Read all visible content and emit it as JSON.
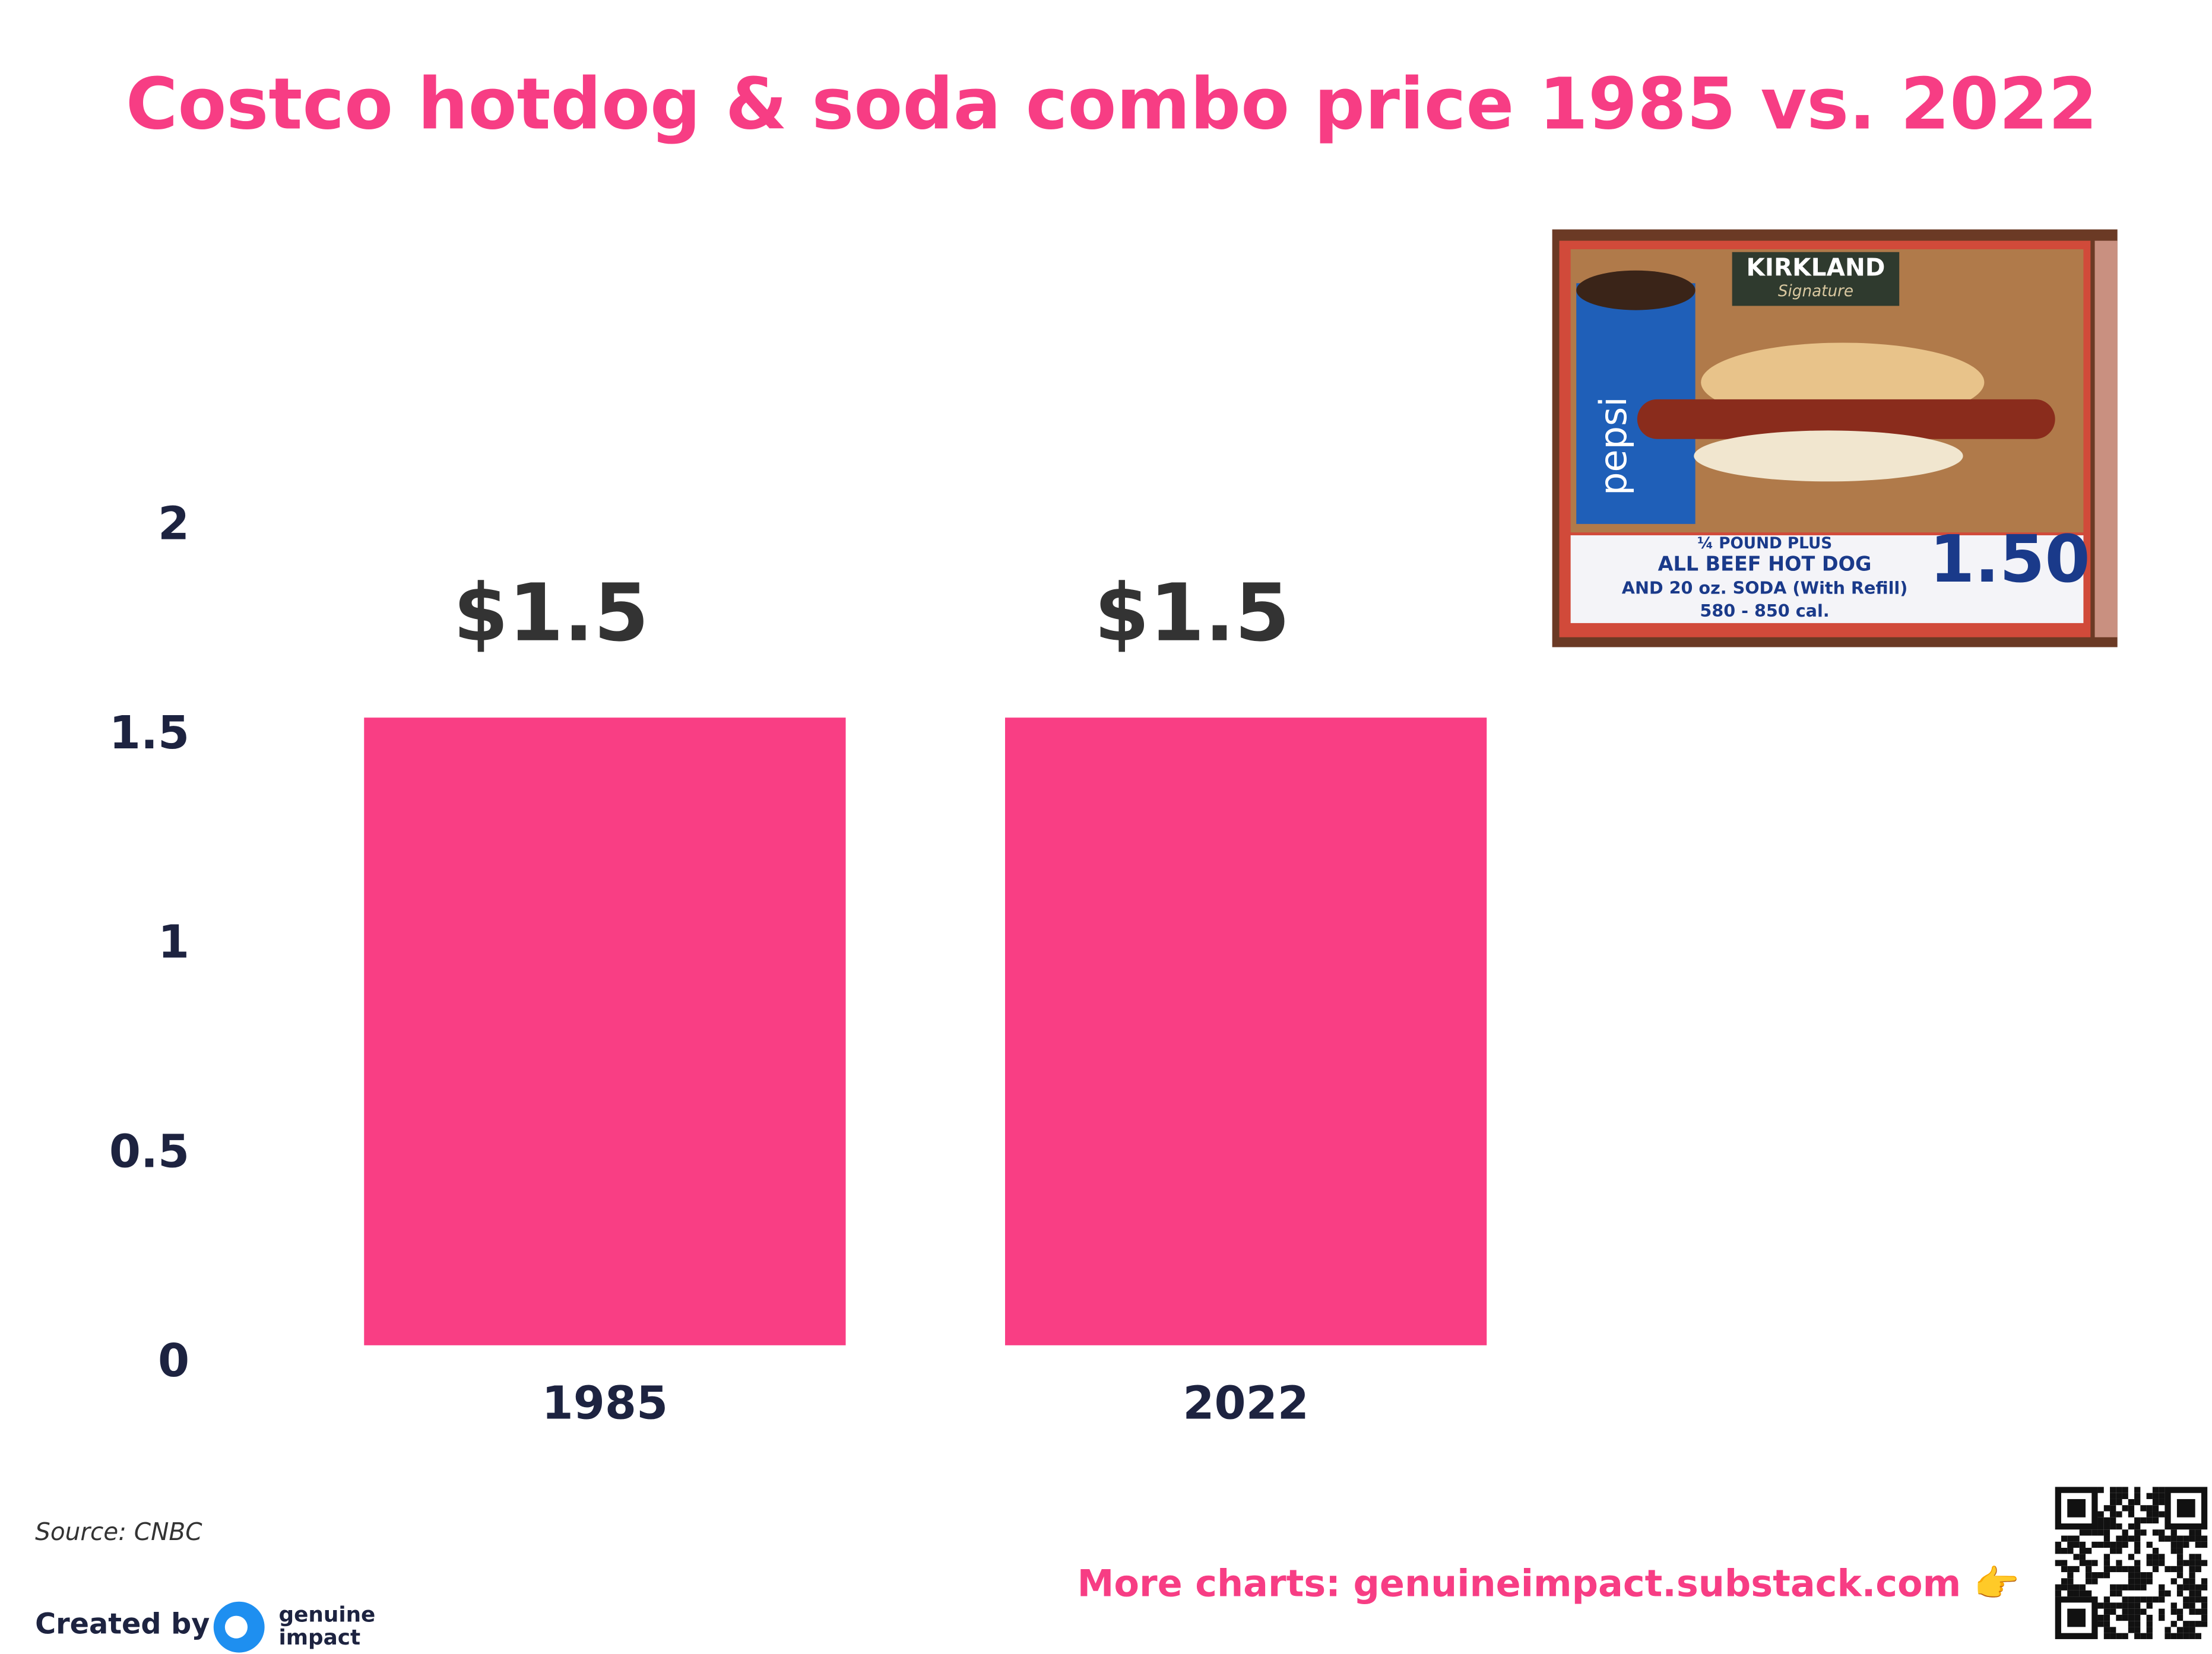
{
  "chart_data": {
    "type": "bar",
    "title": "Costco hotdog & soda combo price 1985 vs. 2022",
    "categories": [
      "1985",
      "2022"
    ],
    "values": [
      1.5,
      1.5
    ],
    "value_labels": [
      "$1.5",
      "$1.5"
    ],
    "color": "#f93e84",
    "ylim": [
      0,
      2
    ],
    "yticks": [
      0,
      0.5,
      1,
      1.5,
      2
    ],
    "grid": false
  },
  "image": {
    "brand": "KIRKLAND",
    "brand_sub": "Signature",
    "cup": "pepsi",
    "lines": [
      "¼ POUND PLUS",
      "ALL BEEF HOT DOG",
      "AND 20 oz. SODA (With Refill)",
      "580 - 850 cal."
    ],
    "price": "1.50"
  },
  "footer": {
    "source": "Source: CNBC",
    "created_by": "Created by",
    "logo": [
      "genuine",
      "impact"
    ],
    "more": "More charts: genuineimpact.substack.com 👉"
  }
}
